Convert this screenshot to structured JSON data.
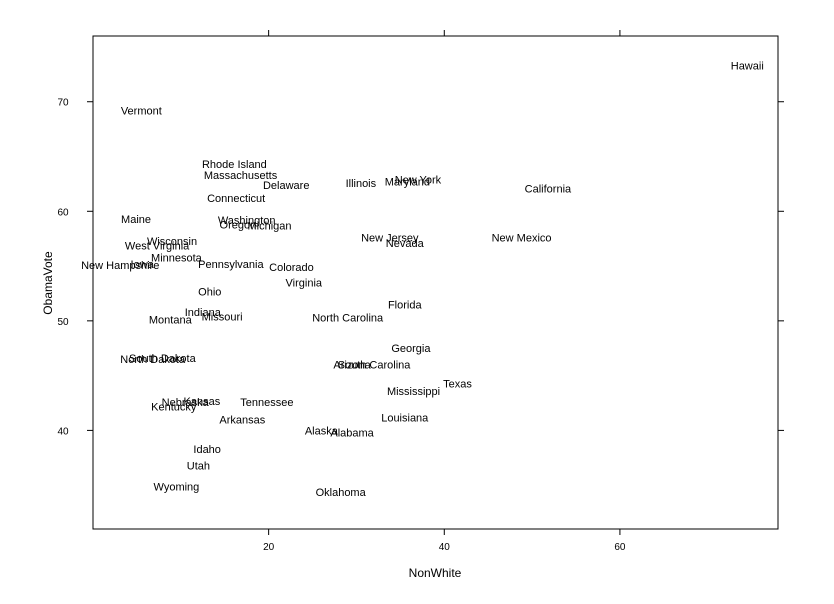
{
  "chart_data": {
    "type": "scatter",
    "title": "",
    "xlabel": "NonWhite",
    "ylabel": "ObamaVote",
    "xlim": [
      0,
      78
    ],
    "ylim": [
      31,
      76
    ],
    "xticks": [
      20,
      40,
      60
    ],
    "yticks": [
      40,
      50,
      60,
      70
    ],
    "grid": false,
    "points": [
      {
        "label": "Hawaii",
        "x": 74.5,
        "y": 73.3
      },
      {
        "label": "Vermont",
        "x": 5.5,
        "y": 69.2
      },
      {
        "label": "Rhode Island",
        "x": 16.1,
        "y": 64.3
      },
      {
        "label": "Massachusetts",
        "x": 16.8,
        "y": 63.3
      },
      {
        "label": "Delaware",
        "x": 22.0,
        "y": 62.4
      },
      {
        "label": "Illinois",
        "x": 30.5,
        "y": 62.6
      },
      {
        "label": "Maryland",
        "x": 35.8,
        "y": 62.7
      },
      {
        "label": "New York",
        "x": 37.0,
        "y": 62.9
      },
      {
        "label": "California",
        "x": 51.8,
        "y": 62.1
      },
      {
        "label": "Connecticut",
        "x": 16.3,
        "y": 61.2
      },
      {
        "label": "Maine",
        "x": 4.9,
        "y": 59.3
      },
      {
        "label": "Washington",
        "x": 17.5,
        "y": 59.2
      },
      {
        "label": "Oregon",
        "x": 16.5,
        "y": 58.8
      },
      {
        "label": "Michigan",
        "x": 20.1,
        "y": 58.7
      },
      {
        "label": "New Jersey",
        "x": 33.8,
        "y": 57.6
      },
      {
        "label": "New Mexico",
        "x": 48.8,
        "y": 57.6
      },
      {
        "label": "Nevada",
        "x": 35.5,
        "y": 57.1
      },
      {
        "label": "Wisconsin",
        "x": 9.0,
        "y": 57.3
      },
      {
        "label": "West Virginia",
        "x": 7.3,
        "y": 56.9
      },
      {
        "label": "Minnesota",
        "x": 9.5,
        "y": 55.8
      },
      {
        "label": "Pennsylvania",
        "x": 15.7,
        "y": 55.2
      },
      {
        "label": "Colorado",
        "x": 22.6,
        "y": 54.9
      },
      {
        "label": "New Hampshire",
        "x": 3.1,
        "y": 55.1
      },
      {
        "label": "Iowa",
        "x": 5.6,
        "y": 55.2
      },
      {
        "label": "Virginia",
        "x": 24.0,
        "y": 53.5
      },
      {
        "label": "Ohio",
        "x": 13.3,
        "y": 52.7
      },
      {
        "label": "Indiana",
        "x": 12.5,
        "y": 50.8
      },
      {
        "label": "Missouri",
        "x": 14.7,
        "y": 50.4
      },
      {
        "label": "Montana",
        "x": 8.8,
        "y": 50.1
      },
      {
        "label": "North Carolina",
        "x": 29.0,
        "y": 50.3
      },
      {
        "label": "Florida",
        "x": 35.5,
        "y": 51.5
      },
      {
        "label": "Georgia",
        "x": 36.2,
        "y": 47.5
      },
      {
        "label": "South Dakota",
        "x": 7.9,
        "y": 46.6
      },
      {
        "label": "North Dakota",
        "x": 6.8,
        "y": 46.5
      },
      {
        "label": "Arizona",
        "x": 29.5,
        "y": 46.0
      },
      {
        "label": "South Carolina",
        "x": 32.0,
        "y": 46.0
      },
      {
        "label": "Texas",
        "x": 41.5,
        "y": 44.3
      },
      {
        "label": "Mississippi",
        "x": 36.5,
        "y": 43.6
      },
      {
        "label": "Kansas",
        "x": 12.4,
        "y": 42.7
      },
      {
        "label": "Nebraska",
        "x": 10.5,
        "y": 42.6
      },
      {
        "label": "Tennessee",
        "x": 19.8,
        "y": 42.6
      },
      {
        "label": "Kentucky",
        "x": 9.2,
        "y": 42.2
      },
      {
        "label": "Louisiana",
        "x": 35.5,
        "y": 41.2
      },
      {
        "label": "Arkansas",
        "x": 17.0,
        "y": 41.0
      },
      {
        "label": "Alaska",
        "x": 26.0,
        "y": 40.0
      },
      {
        "label": "Alabama",
        "x": 29.5,
        "y": 39.8
      },
      {
        "label": "Idaho",
        "x": 13.0,
        "y": 38.3
      },
      {
        "label": "Utah",
        "x": 12.0,
        "y": 36.8
      },
      {
        "label": "Wyoming",
        "x": 9.5,
        "y": 34.9
      },
      {
        "label": "Oklahoma",
        "x": 28.2,
        "y": 34.4
      }
    ]
  }
}
